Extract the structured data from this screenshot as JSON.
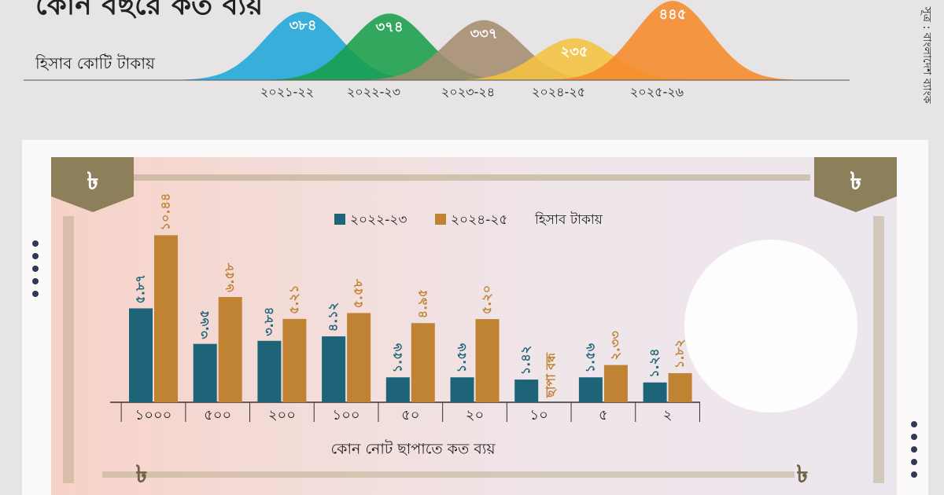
{
  "title": "কোন বছরে কত ব্যয়",
  "subtitle": "হিসাব কোটি টাকায়",
  "source": "সূত্র : বাংলাদেশ ব্যাংক",
  "currency_symbol": "৳",
  "chart_data": [
    {
      "type": "area",
      "categories": [
        "২০২১-২২",
        "২০২২-২৩",
        "২০২৩-২৪",
        "২০২৪-২৫",
        "২০২৫-২৬"
      ],
      "values": [
        384,
        374,
        337,
        235,
        445
      ],
      "value_labels": [
        "৩৮৪",
        "৩৭৪",
        "৩৩৭",
        "২৩৫",
        "৪৪৫"
      ],
      "colors": [
        "#1fa7d8",
        "#1a9e4a",
        "#a58c6f",
        "#f5c342",
        "#f58a2a"
      ],
      "ylim": [
        0,
        450
      ]
    },
    {
      "type": "bar",
      "title": "কোন নোট ছাপাতে কত ব্যয়",
      "unit_note": "হিসাব টাকায়",
      "categories": [
        "১০০০",
        "৫০০",
        "২০০",
        "১০০",
        "৫০",
        "২০",
        "১০",
        "৫",
        "২"
      ],
      "series": [
        {
          "name": "২০২২-২৩",
          "color": "#1d6479",
          "values": [
            5.87,
            3.65,
            3.84,
            4.12,
            1.56,
            1.56,
            1.42,
            1.56,
            1.24
          ],
          "value_labels": [
            "৫.৮৭",
            "৩.৬৫",
            "৩.৮৪",
            "৪.১২",
            "১.৫৬",
            "১.৫৬",
            "১.৪২",
            "১.৫৬",
            "১.২৪"
          ]
        },
        {
          "name": "২০২৪-২৫",
          "color": "#c08334",
          "values": [
            10.44,
            6.58,
            5.21,
            5.58,
            4.95,
            5.2,
            null,
            2.33,
            1.82
          ],
          "value_labels": [
            "১০.৪৪",
            "৬.৫৮",
            "৫.২১",
            "৫.৫৮",
            "৪.৯৫",
            "৫.২০",
            "ছাপা বন্ধ",
            "২.৩৩",
            "১.৮২"
          ]
        }
      ],
      "ylim": [
        0,
        11
      ]
    }
  ]
}
